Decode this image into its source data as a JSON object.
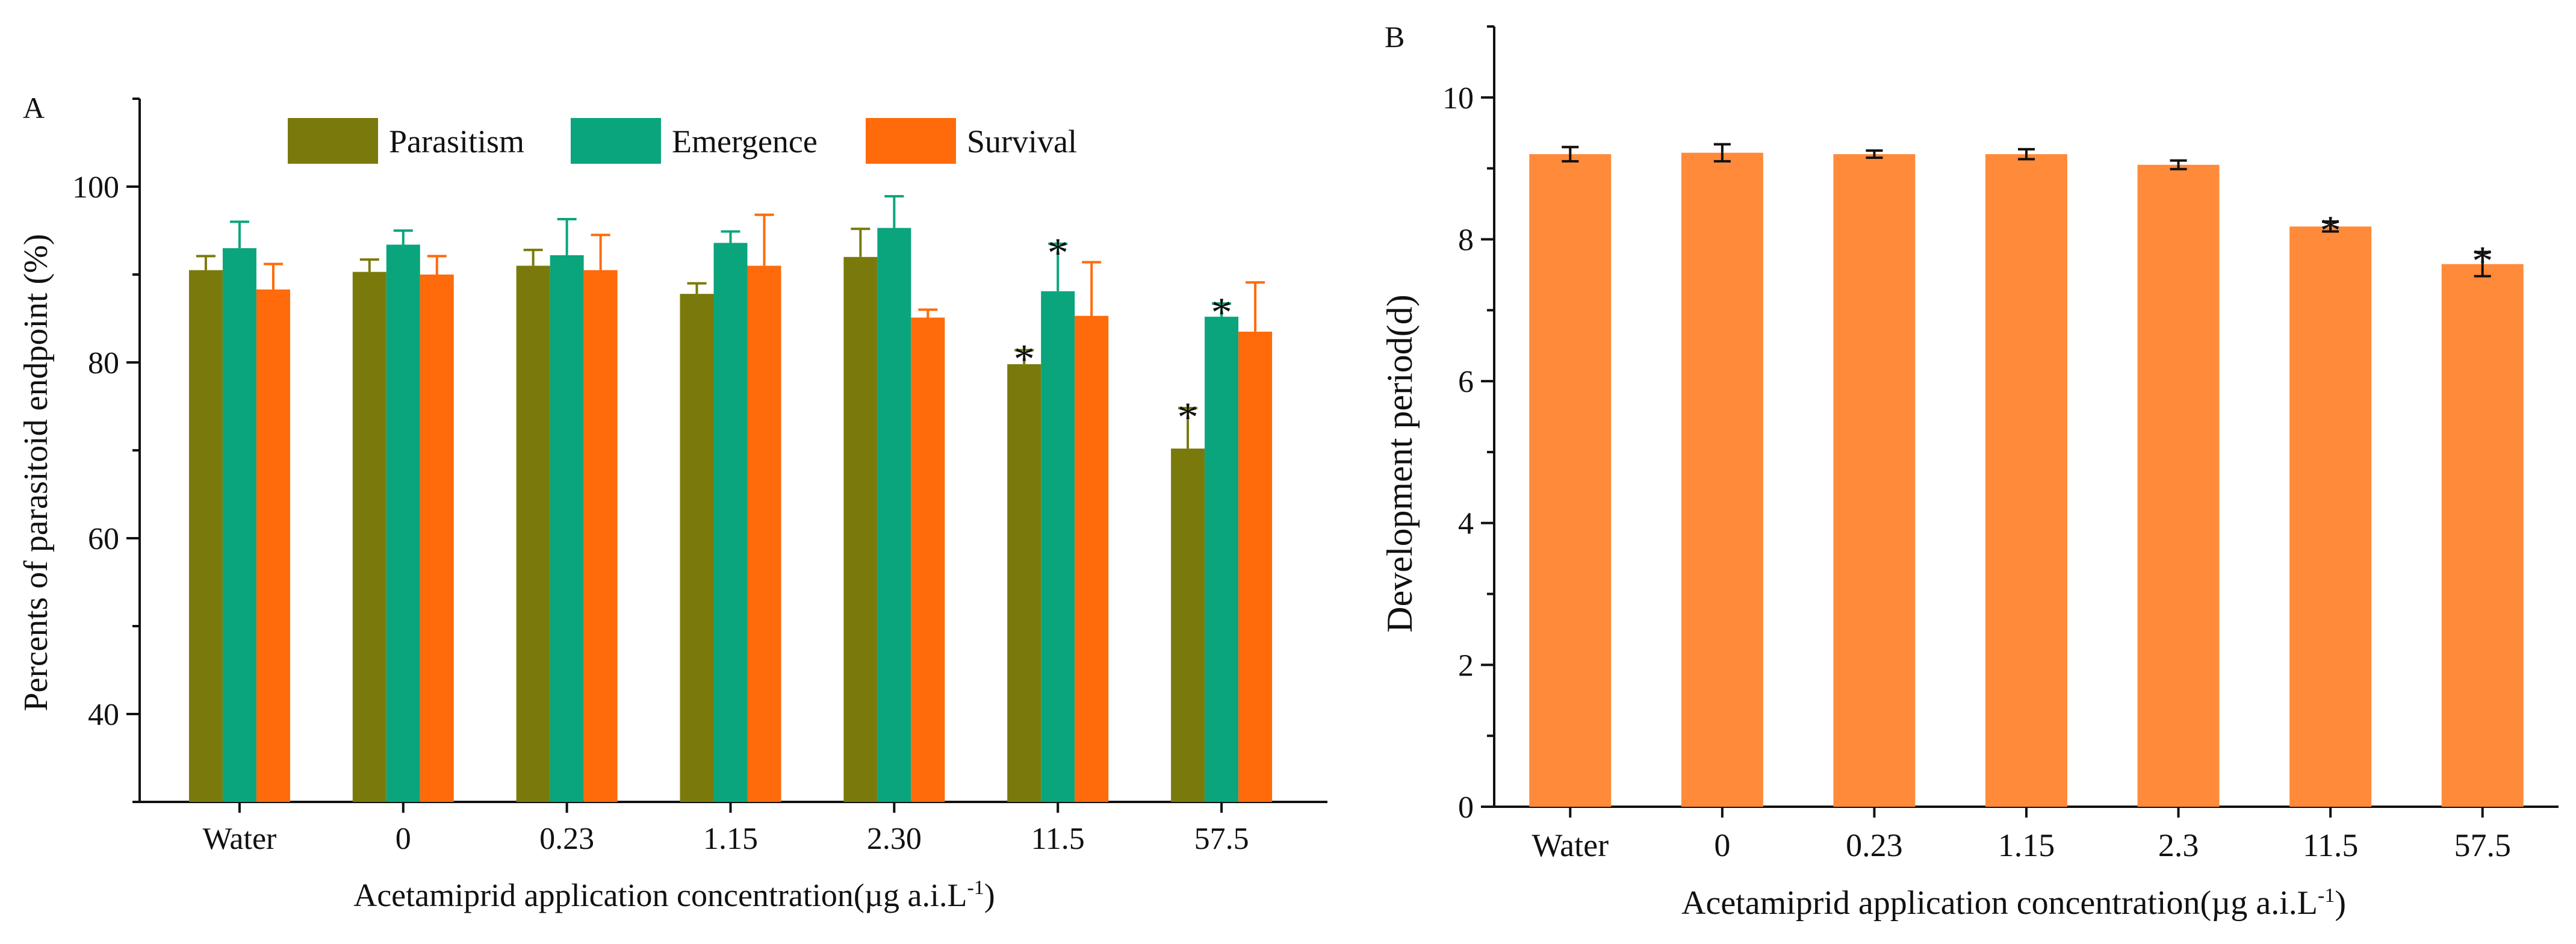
{
  "chart_data": [
    {
      "panel": "A",
      "type": "bar",
      "title": "",
      "xlabel": "Acetamiprid application concentration(µg a.i.L",
      "xlabel_sup": "-1",
      "xlabel_close": ")",
      "ylabel": "Percents of parasitoid endpoint (%)",
      "ylim": [
        30,
        110
      ],
      "yticks": [
        40,
        60,
        80,
        100
      ],
      "grid": false,
      "legend": "top",
      "categories": [
        "Water",
        "0",
        "0.23",
        "1.15",
        "2.30",
        "11.5",
        "57.5"
      ],
      "series": [
        {
          "name": "Parasitism",
          "color": "#7a7a0c",
          "values": [
            90.5,
            90.3,
            91.0,
            87.8,
            92.0,
            79.8,
            70.2
          ],
          "errors": [
            1.6,
            1.4,
            1.8,
            1.2,
            3.2,
            1.6,
            4.6
          ],
          "sig": [
            false,
            false,
            false,
            false,
            false,
            true,
            true
          ]
        },
        {
          "name": "Emergence",
          "color": "#0aa57d",
          "values": [
            93.0,
            93.4,
            92.2,
            93.6,
            95.3,
            88.1,
            85.2
          ],
          "errors": [
            3.0,
            1.6,
            4.1,
            1.3,
            3.6,
            5.4,
            1.5
          ],
          "sig": [
            false,
            false,
            false,
            false,
            false,
            true,
            true
          ]
        },
        {
          "name": "Survival",
          "color": "#ff6a0a",
          "values": [
            88.3,
            90.0,
            90.5,
            91.0,
            85.1,
            85.3,
            83.5
          ],
          "errors": [
            2.9,
            2.1,
            4.0,
            5.8,
            0.9,
            6.1,
            5.6
          ],
          "sig": [
            false,
            false,
            false,
            false,
            false,
            false,
            false
          ]
        }
      ],
      "sig_marker": "*"
    },
    {
      "panel": "B",
      "type": "bar",
      "title": "",
      "xlabel": "Acetamiprid application concentration(µg a.i.L",
      "xlabel_sup": "-1",
      "xlabel_close": ")",
      "ylabel": "Development period(d)",
      "ylim": [
        0,
        11
      ],
      "yticks": [
        0,
        2,
        4,
        6,
        8,
        10
      ],
      "grid": false,
      "legend": "none",
      "categories": [
        "Water",
        "0",
        "0.23",
        "1.15",
        "2.3",
        "11.5",
        "57.5"
      ],
      "series": [
        {
          "name": "Development period",
          "color": "#ff8a3a",
          "values": [
            9.2,
            9.22,
            9.2,
            9.2,
            9.05,
            8.18,
            7.65
          ],
          "errors": [
            0.1,
            0.12,
            0.05,
            0.07,
            0.06,
            0.07,
            0.17
          ],
          "sig": [
            false,
            false,
            false,
            false,
            false,
            true,
            true
          ]
        }
      ],
      "sig_marker": "*"
    }
  ]
}
